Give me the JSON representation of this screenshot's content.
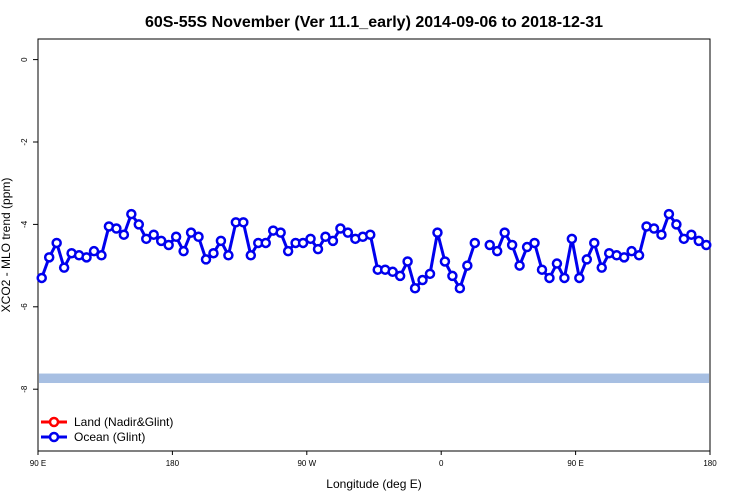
{
  "chart_data": {
    "type": "line",
    "title": "60S-55S November (Ver 11.1_early)   2014-09-06 to 2018-12-31",
    "xlabel": "Longitude (deg E)",
    "ylabel": "XCO2 - MLO trend (ppm)",
    "xlim": [
      90,
      540
    ],
    "ylim": [
      -9.5,
      0.5
    ],
    "x_ticks": [
      {
        "value": 90,
        "label": "90 E"
      },
      {
        "value": 180,
        "label": "180"
      },
      {
        "value": 270,
        "label": "90 W"
      },
      {
        "value": 360,
        "label": "0"
      },
      {
        "value": 450,
        "label": "90 E"
      },
      {
        "value": 540,
        "label": "180"
      }
    ],
    "y_ticks": [
      {
        "value": 0,
        "label": "0"
      },
      {
        "value": -2,
        "label": "-2"
      },
      {
        "value": -4,
        "label": "-4"
      },
      {
        "value": -6,
        "label": "-6"
      },
      {
        "value": -8,
        "label": "-8"
      }
    ],
    "band": {
      "y_min": -7.85,
      "y_max": -7.62,
      "color": "#a7bfe2"
    },
    "legend_position": "bottom-left",
    "series": [
      {
        "name": "Land (Nadir&Glint)",
        "color": "#ff0000",
        "x": [],
        "y": []
      },
      {
        "name": "Ocean (Glint)",
        "color": "#0000ee",
        "x": [
          92.5,
          97.5,
          102.5,
          107.5,
          112.5,
          117.5,
          122.5,
          127.5,
          132.5,
          137.5,
          142.5,
          147.5,
          152.5,
          157.5,
          162.5,
          167.5,
          172.5,
          177.5,
          182.5,
          187.5,
          192.5,
          197.5,
          202.5,
          207.5,
          212.5,
          217.5,
          222.5,
          227.5,
          232.5,
          237.5,
          242.5,
          247.5,
          252.5,
          257.5,
          262.5,
          267.5,
          272.5,
          277.5,
          282.5,
          287.5,
          292.5,
          297.5,
          302.5,
          307.5,
          312.5,
          317.5,
          322.5,
          327.5,
          332.5,
          337.5,
          342.5,
          347.5,
          352.5,
          357.5,
          362.5,
          367.5,
          372.5,
          377.5,
          382.5,
          null,
          392.5,
          397.5,
          402.5,
          407.5,
          412.5,
          417.5,
          422.5,
          427.5,
          432.5,
          437.5,
          442.5,
          447.5,
          452.5,
          457.5,
          462.5,
          467.5,
          472.5,
          477.5,
          482.5,
          487.5,
          492.5,
          497.5,
          502.5,
          507.5,
          512.5,
          517.5,
          522.5,
          527.5,
          532.5,
          537.5
        ],
        "y": [
          -5.3,
          -4.8,
          -4.45,
          -5.05,
          -4.7,
          -4.75,
          -4.8,
          -4.65,
          -4.75,
          -4.05,
          -4.1,
          -4.25,
          -3.75,
          -4.0,
          -4.35,
          -4.25,
          -4.4,
          -4.5,
          -4.3,
          -4.65,
          -4.2,
          -4.3,
          -4.85,
          -4.7,
          -4.4,
          -4.75,
          -3.95,
          -3.95,
          -4.75,
          -4.45,
          -4.45,
          -4.15,
          -4.2,
          -4.65,
          -4.45,
          -4.45,
          -4.35,
          -4.6,
          -4.3,
          -4.4,
          -4.1,
          -4.2,
          -4.35,
          -4.3,
          -4.25,
          -5.1,
          -5.1,
          -5.15,
          -5.25,
          -4.9,
          -5.55,
          -5.35,
          -5.2,
          -4.2,
          -4.9,
          -5.25,
          -5.55,
          -5.0,
          -4.45,
          null,
          -4.5,
          -4.65,
          -4.2,
          -4.5,
          -5.0,
          -4.55,
          -4.45,
          -5.1,
          -5.3,
          -4.95,
          -5.3,
          -4.35,
          -5.3,
          -4.85,
          -4.45,
          -5.05,
          -4.7,
          -4.75,
          -4.8,
          -4.65,
          -4.75,
          -4.05,
          -4.1,
          -4.25,
          -3.75,
          -4.0,
          -4.35,
          -4.25,
          -4.4,
          -4.5
        ]
      }
    ]
  }
}
